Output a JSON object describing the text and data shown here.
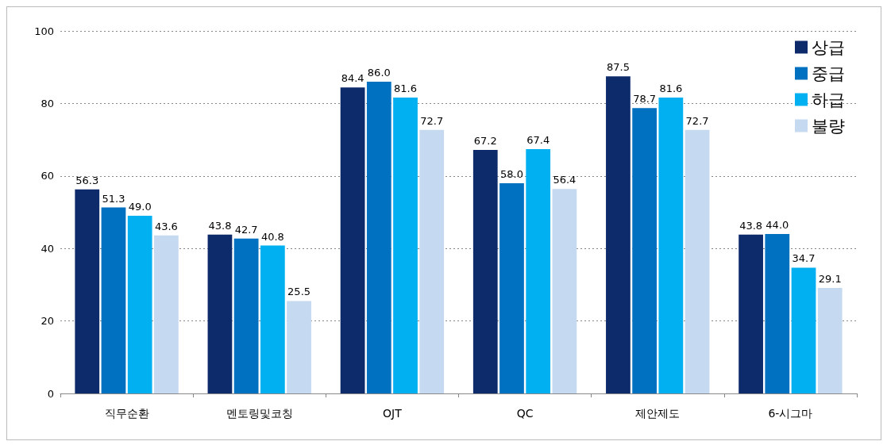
{
  "chart_data": {
    "type": "bar",
    "categories": [
      "직무순환",
      "멘토링및코칭",
      "OJT",
      "QC",
      "제안제도",
      "6-시그마"
    ],
    "series": [
      {
        "name": "상급",
        "color": "#0d2a6b",
        "values": [
          56.3,
          43.8,
          84.4,
          67.2,
          87.5,
          43.8
        ],
        "value_labels": [
          "56.3",
          "43.8",
          "84.4",
          "67.2",
          "87.5",
          "43.8"
        ]
      },
      {
        "name": "중급",
        "color": "#0070c0",
        "values": [
          51.3,
          42.7,
          86.0,
          58.0,
          78.7,
          44.0
        ],
        "value_labels": [
          "51.3",
          "42.7",
          "86.0",
          "58.0",
          "78.7",
          "44.0"
        ]
      },
      {
        "name": "하급",
        "color": "#00b0f0",
        "values": [
          49.0,
          40.8,
          81.6,
          67.4,
          81.6,
          34.7
        ],
        "value_labels": [
          "49.0",
          "40.8",
          "81.6",
          "67.4",
          "81.6",
          "34.7"
        ]
      },
      {
        "name": "불량",
        "color": "#c5d9f1",
        "values": [
          43.6,
          25.5,
          72.7,
          56.4,
          72.7,
          29.1
        ],
        "value_labels": [
          "43.6",
          "25.5",
          "72.7",
          "56.4",
          "72.7",
          "29.1"
        ]
      }
    ],
    "ylim": [
      0,
      100
    ],
    "yticks": [
      0,
      20,
      40,
      60,
      80,
      100
    ],
    "grid": "y",
    "legend": "top right"
  }
}
